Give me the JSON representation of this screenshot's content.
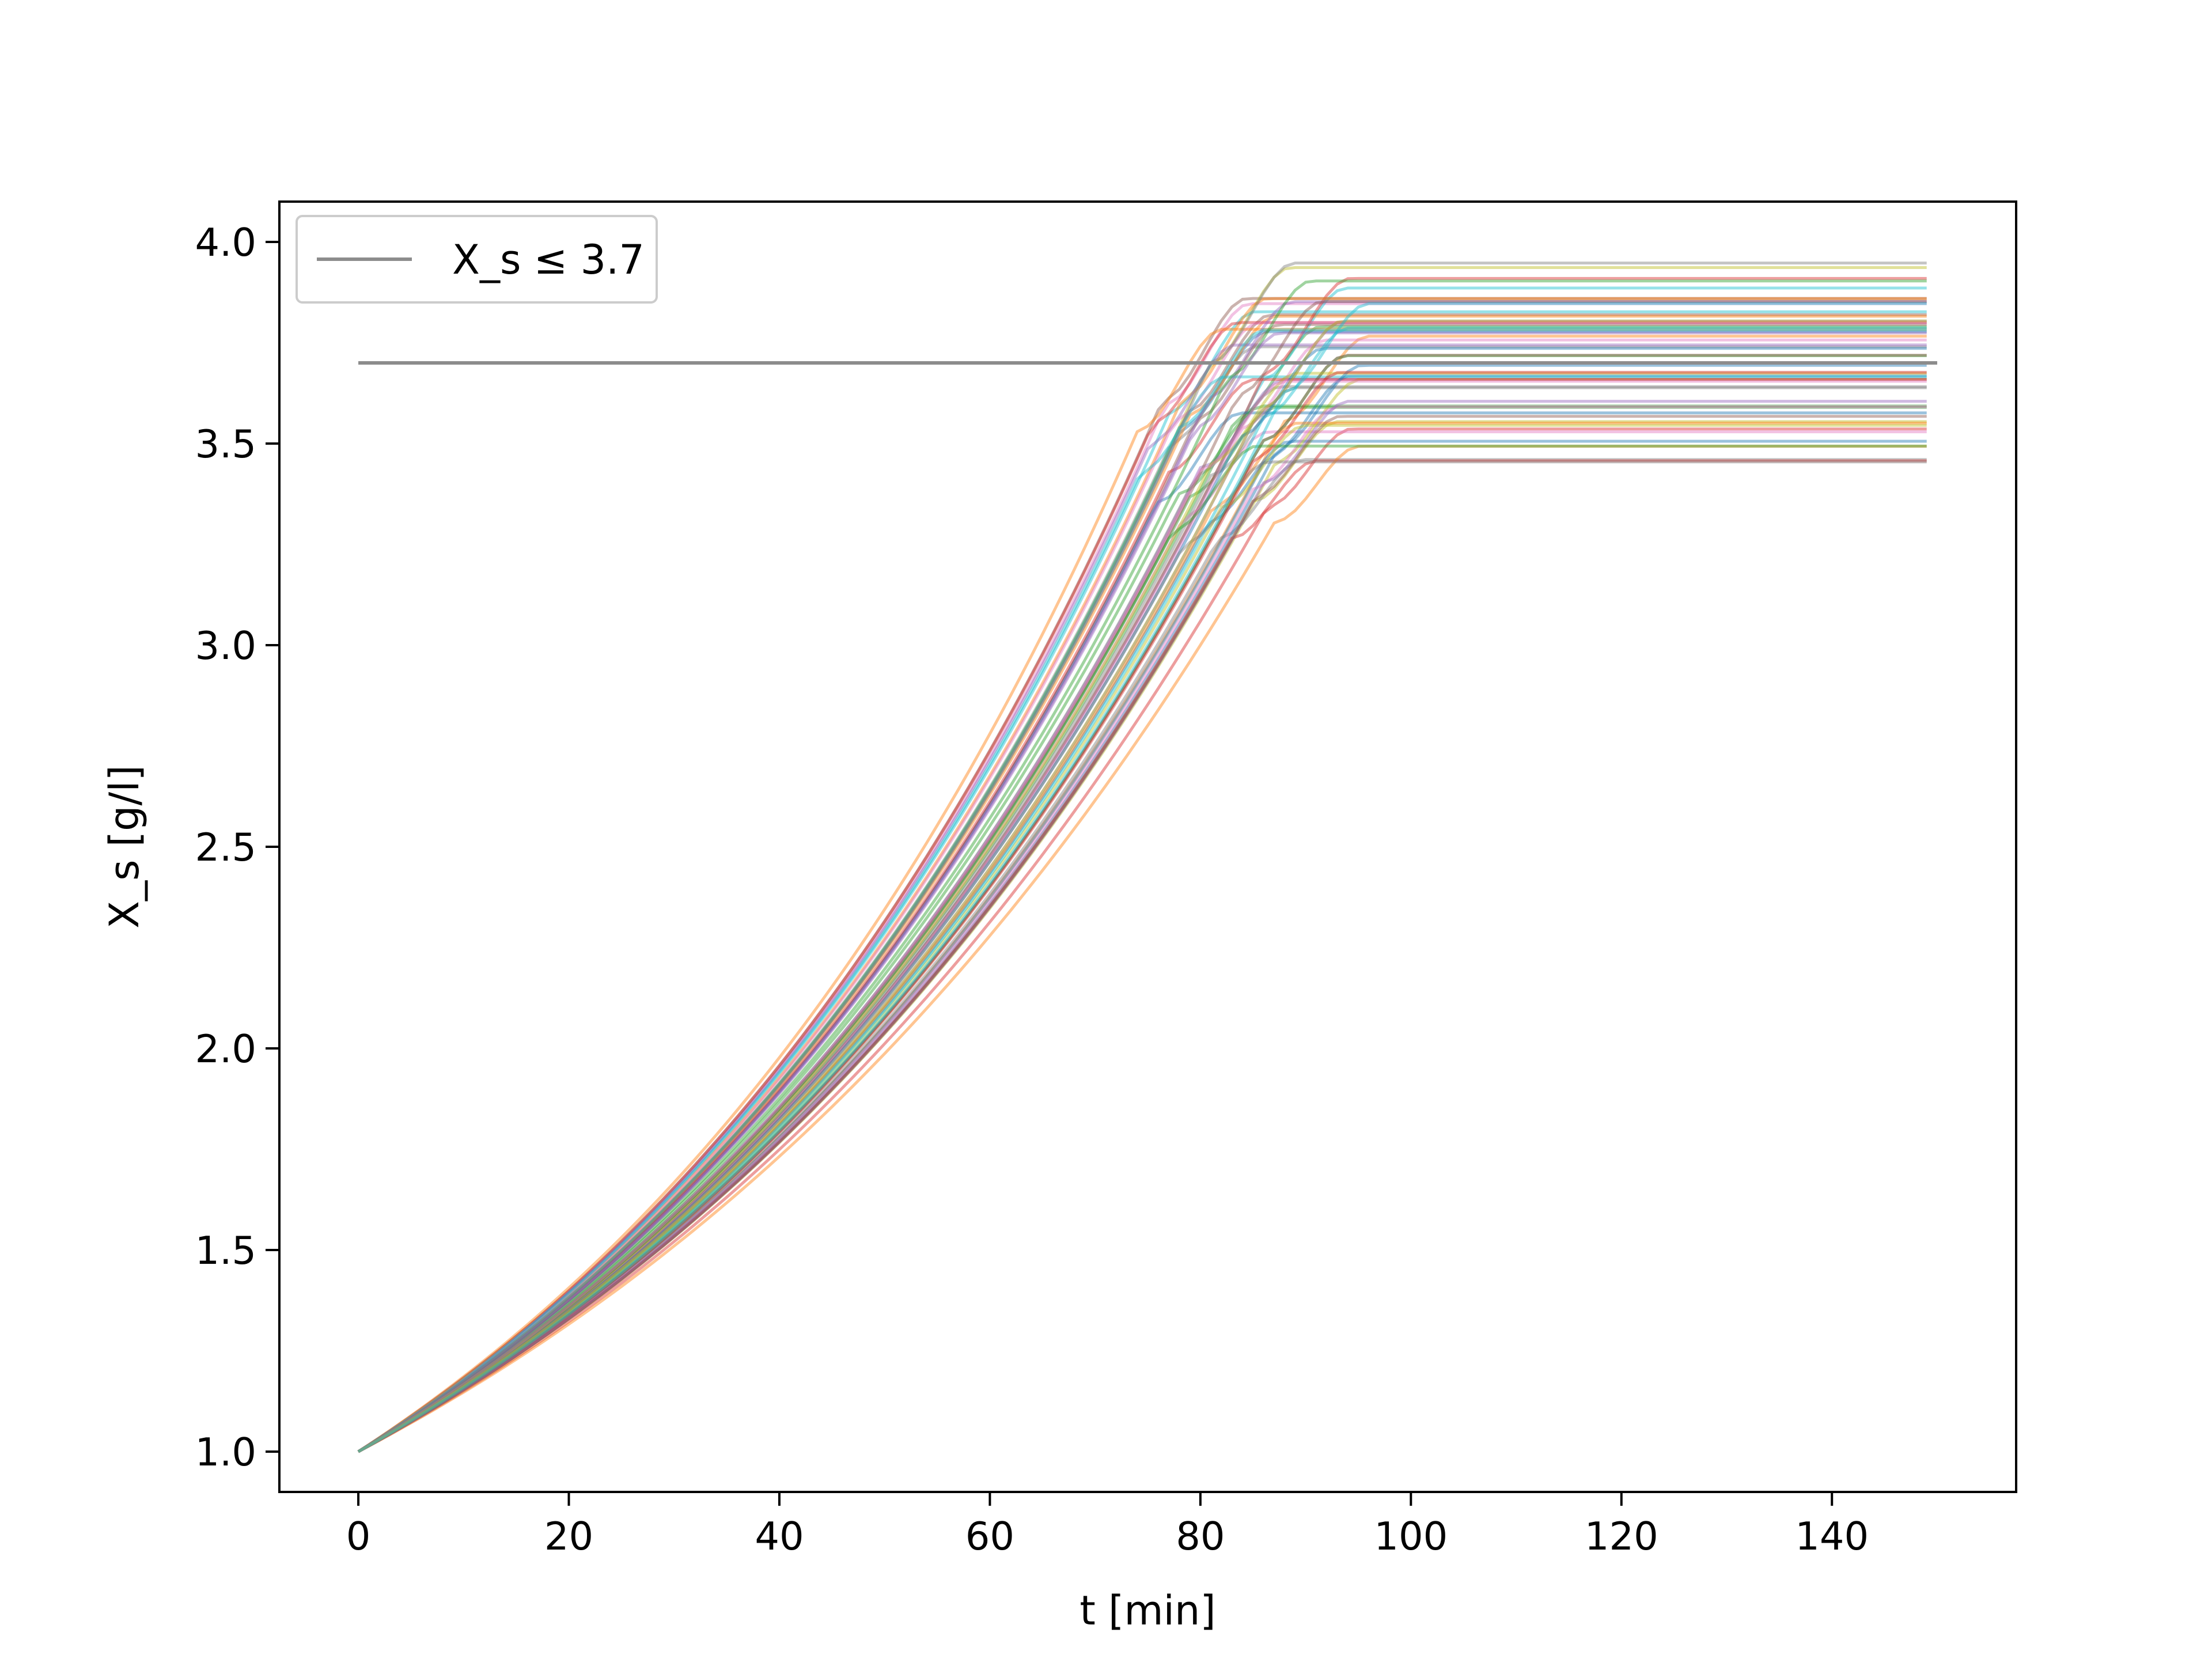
{
  "chart_data": {
    "type": "line",
    "title": "",
    "xlabel": "t [min]",
    "ylabel": "X_s [g/l]",
    "xlim": [
      -7.5,
      157.5
    ],
    "ylim": [
      0.9,
      4.1
    ],
    "x_ticks": [
      0,
      20,
      40,
      60,
      80,
      100,
      120,
      140
    ],
    "y_ticks": [
      1.0,
      1.5,
      2.0,
      2.5,
      3.0,
      3.5,
      4.0
    ],
    "x_tick_labels": [
      "0",
      "20",
      "40",
      "60",
      "80",
      "100",
      "120",
      "140"
    ],
    "y_tick_labels": [
      "1.0",
      "1.5",
      "2.0",
      "2.5",
      "3.0",
      "3.5",
      "4.0"
    ],
    "grid": false,
    "legend": {
      "placement": "top-left",
      "entries": [
        {
          "label": "X_s ≤ 3.7",
          "color": "#8c8c8c"
        }
      ]
    },
    "constraint": {
      "y": 3.7,
      "x_range": [
        0,
        150
      ],
      "color": "#8c8c8c",
      "label": "X_s ≤ 3.7"
    },
    "series_template": {
      "count": 60,
      "x_start": 0,
      "x_end": 149,
      "y_start": 1.0,
      "growth_phase_end_range": [
        78,
        92
      ],
      "plateau_range": [
        3.45,
        3.95
      ],
      "opacity": 0.45
    },
    "colors": [
      "#1f77b4",
      "#ff7f0e",
      "#2ca02c",
      "#d62728",
      "#9467bd",
      "#8c564b",
      "#e377c2",
      "#7f7f7f",
      "#bcbd22",
      "#17becf"
    ]
  }
}
